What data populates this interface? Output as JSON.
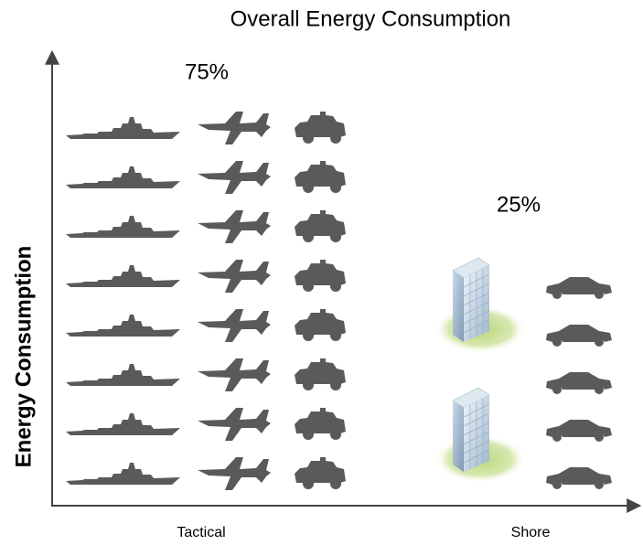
{
  "chart_data": {
    "type": "pictogram",
    "title": "Overall Energy Consumption",
    "y_label": "Energy Consumption",
    "categories": [
      "Tactical",
      "Shore"
    ],
    "values": [
      75,
      25
    ],
    "value_labels": [
      "75%",
      "25%"
    ],
    "color": "#5a5a5a"
  }
}
